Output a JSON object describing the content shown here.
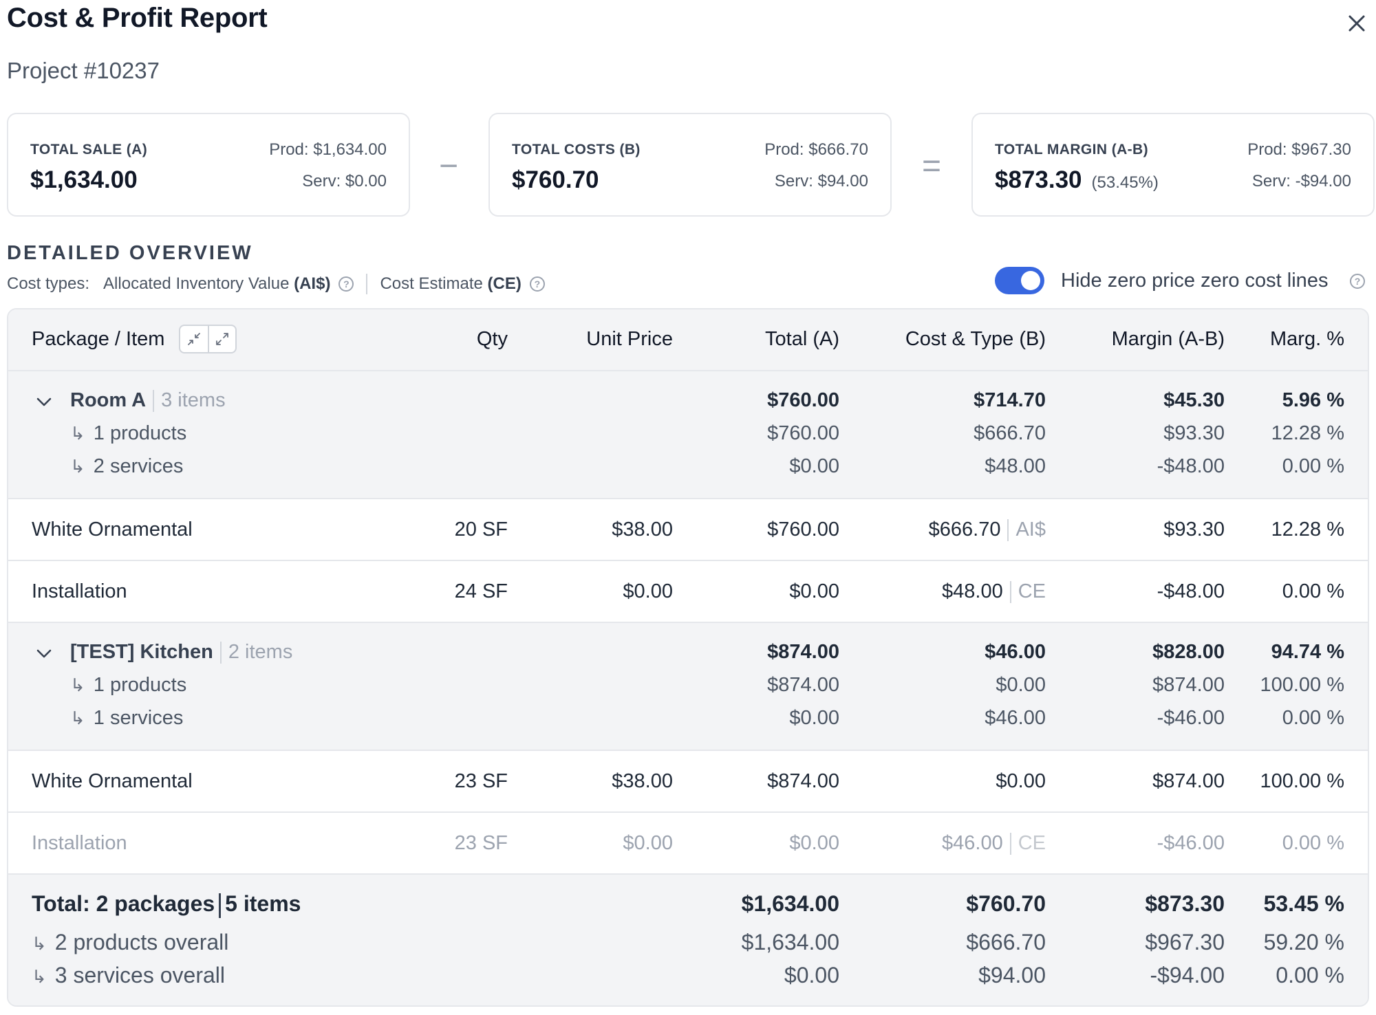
{
  "header": {
    "title": "Cost & Profit Report",
    "project": "Project #10237"
  },
  "summary": {
    "sale": {
      "label": "TOTAL SALE (A)",
      "value": "$1,634.00",
      "prod": "Prod: $1,634.00",
      "serv": "Serv: $0.00"
    },
    "costs": {
      "label": "TOTAL COSTS (B)",
      "value": "$760.70",
      "prod": "Prod: $666.70",
      "serv": "Serv: $94.00"
    },
    "margin": {
      "label": "TOTAL MARGIN (A-B)",
      "value": "$873.30",
      "pct": "(53.45%)",
      "prod": "Prod: $967.30",
      "serv": "Serv: -$94.00"
    },
    "minus": "−",
    "equals": "="
  },
  "overview": {
    "heading": "DETAILED OVERVIEW",
    "cost_types_label": "Cost types:",
    "type1_name": "Allocated Inventory Value",
    "type1_code": "(AI$)",
    "type2_name": "Cost Estimate",
    "type2_code": "(CE)",
    "toggle_label": "Hide zero price zero cost lines",
    "toggle_on": true
  },
  "columns": {
    "item": "Package / Item",
    "qty": "Qty",
    "unit_price": "Unit Price",
    "total": "Total (A)",
    "cost": "Cost & Type (B)",
    "margin": "Margin (A-B)",
    "marg_pct": "Marg. %"
  },
  "packages": [
    {
      "name": "Room A",
      "count": "3 items",
      "total": "$760.00",
      "cost": "$714.70",
      "margin": "$45.30",
      "pct": "5.96 %",
      "products_label": "1 products",
      "products": {
        "total": "$760.00",
        "cost": "$666.70",
        "margin": "$93.30",
        "pct": "12.28 %"
      },
      "services_label": "2 services",
      "services": {
        "total": "$0.00",
        "cost": "$48.00",
        "margin": "-$48.00",
        "pct": "0.00 %"
      },
      "items": [
        {
          "name": "White Ornamental",
          "qty": "20 SF",
          "unit": "$38.00",
          "total": "$760.00",
          "cost": "$666.70",
          "type": "AI$",
          "margin": "$93.30",
          "pct": "12.28 %"
        },
        {
          "name": "Installation",
          "qty": "24 SF",
          "unit": "$0.00",
          "total": "$0.00",
          "cost": "$48.00",
          "type": "CE",
          "margin": "-$48.00",
          "pct": "0.00 %"
        }
      ]
    },
    {
      "name": "[TEST] Kitchen",
      "count": "2 items",
      "total": "$874.00",
      "cost": "$46.00",
      "margin": "$828.00",
      "pct": "94.74 %",
      "products_label": "1 products",
      "products": {
        "total": "$874.00",
        "cost": "$0.00",
        "margin": "$874.00",
        "pct": "100.00 %"
      },
      "services_label": "1 services",
      "services": {
        "total": "$0.00",
        "cost": "$46.00",
        "margin": "-$46.00",
        "pct": "0.00 %"
      },
      "items": [
        {
          "name": "White Ornamental",
          "qty": "23 SF",
          "unit": "$38.00",
          "total": "$874.00",
          "cost": "$0.00",
          "type": "",
          "margin": "$874.00",
          "pct": "100.00 %"
        },
        {
          "name": "Installation",
          "qty": "23 SF",
          "unit": "$0.00",
          "total": "$0.00",
          "cost": "$46.00",
          "type": "CE",
          "margin": "-$46.00",
          "pct": "0.00 %"
        }
      ]
    }
  ],
  "totals": {
    "label_a": "Total: 2 packages",
    "label_b": "5 items",
    "total": "$1,634.00",
    "cost": "$760.70",
    "margin": "$873.30",
    "pct": "53.45 %",
    "products_label": "2 products overall",
    "products": {
      "total": "$1,634.00",
      "cost": "$666.70",
      "margin": "$967.30",
      "pct": "59.20 %"
    },
    "services_label": "3 services overall",
    "services": {
      "total": "$0.00",
      "cost": "$94.00",
      "margin": "-$94.00",
      "pct": "0.00 %"
    }
  },
  "icons": {
    "arrow": "↳",
    "help": "?"
  }
}
